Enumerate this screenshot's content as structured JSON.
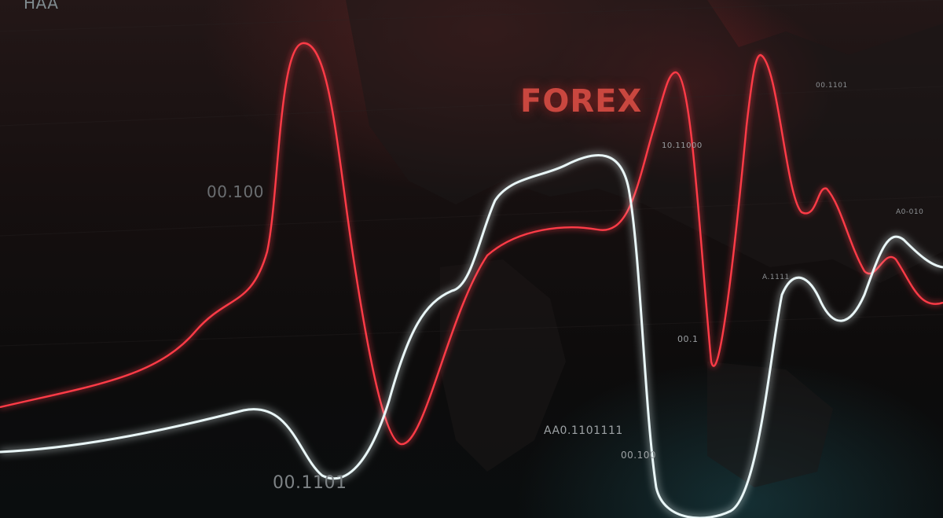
{
  "headline": "FOREX",
  "labels": {
    "top_left": "HAA",
    "left_mid": "00.100",
    "bottom_left": "00.1101",
    "center_bottom": "AA0.1101111",
    "center_bottom_2": "00.100",
    "near_peak": "10.11000",
    "mid_right": "00.1",
    "right_top": "00.1101",
    "right_mid": "A.1111",
    "far_right": "A0-010"
  },
  "colors": {
    "red_line": "#ff3b46",
    "white_line": "#e9f6f7",
    "headline": "#c9473f"
  }
}
